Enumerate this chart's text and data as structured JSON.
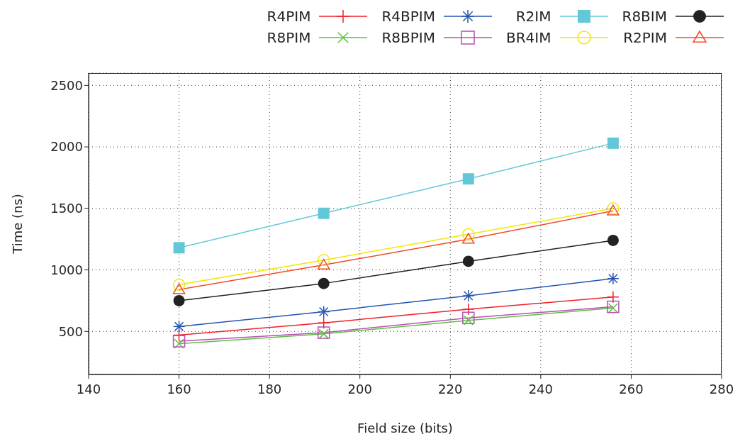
{
  "chart_data": {
    "type": "line",
    "xlabel": "Field size (bits)",
    "ylabel": "Time (ns)",
    "x": [
      160,
      192,
      224,
      256
    ],
    "series": [
      {
        "name": "R4PIM",
        "color": "#f0202a",
        "marker": "plus",
        "values": [
          470,
          570,
          680,
          780
        ]
      },
      {
        "name": "R8PIM",
        "color": "#5cbf45",
        "marker": "x",
        "values": [
          400,
          480,
          590,
          690
        ]
      },
      {
        "name": "R4BPIM",
        "color": "#2454b0",
        "marker": "cross",
        "values": [
          540,
          660,
          790,
          930
        ]
      },
      {
        "name": "R8BPIM",
        "color": "#b84fb0",
        "marker": "square-open",
        "values": [
          420,
          490,
          610,
          700
        ]
      },
      {
        "name": "R2IM",
        "color": "#62c8d8",
        "marker": "square",
        "values": [
          1180,
          1460,
          1740,
          2030
        ]
      },
      {
        "name": "BR4IM",
        "color": "#f2e60e",
        "marker": "circle-open",
        "values": [
          880,
          1080,
          1290,
          1500
        ]
      },
      {
        "name": "R8BIM",
        "color": "#222222",
        "marker": "circle",
        "values": [
          750,
          890,
          1070,
          1240
        ]
      },
      {
        "name": "R2PIM",
        "color": "#f04a24",
        "marker": "triangle-open",
        "values": [
          840,
          1040,
          1250,
          1480
        ]
      }
    ],
    "xlim": [
      140,
      280
    ],
    "xticks": [
      140,
      160,
      180,
      200,
      220,
      240,
      260,
      280
    ],
    "ylim": [
      150,
      2600
    ],
    "yticks": [
      500,
      1000,
      1500,
      2000,
      2500
    ],
    "grid": true,
    "legend": "top right"
  }
}
